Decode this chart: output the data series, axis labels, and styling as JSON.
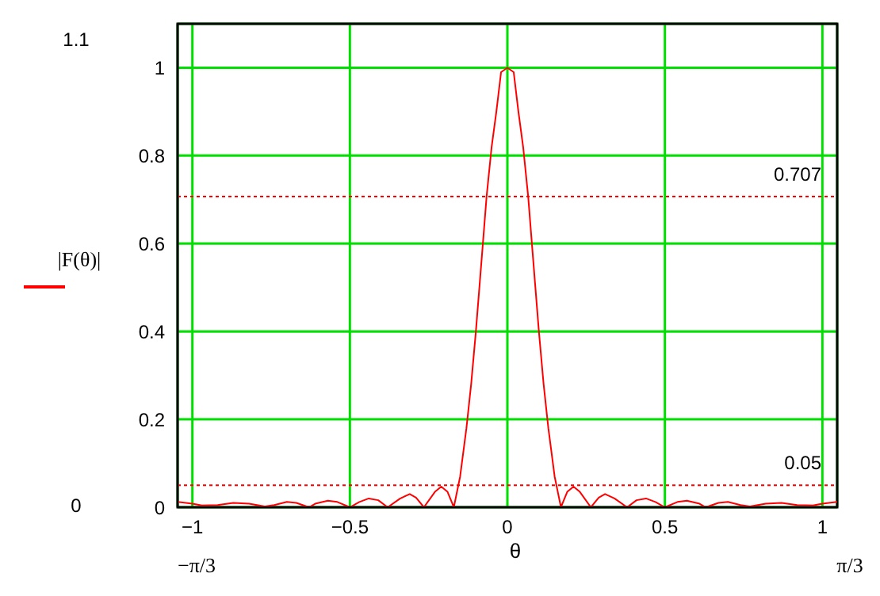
{
  "chart_data": {
    "type": "line",
    "xlabel": "θ",
    "ylabel": "|F(θ)|",
    "x": [
      -1.047,
      -1.0,
      -0.97,
      -0.92,
      -0.87,
      -0.82,
      -0.77,
      -0.74,
      -0.7,
      -0.67,
      -0.63,
      -0.61,
      -0.57,
      -0.54,
      -0.5,
      -0.47,
      -0.44,
      -0.41,
      -0.38,
      -0.34,
      -0.31,
      -0.29,
      -0.265,
      -0.23,
      -0.21,
      -0.19,
      -0.17,
      -0.15,
      -0.13,
      -0.115,
      -0.1,
      -0.08,
      -0.066,
      -0.05,
      -0.035,
      -0.02,
      0,
      0.02,
      0.035,
      0.05,
      0.066,
      0.08,
      0.1,
      0.115,
      0.13,
      0.15,
      0.17,
      0.19,
      0.21,
      0.23,
      0.265,
      0.29,
      0.31,
      0.34,
      0.38,
      0.41,
      0.44,
      0.47,
      0.5,
      0.54,
      0.57,
      0.61,
      0.63,
      0.67,
      0.7,
      0.74,
      0.77,
      0.82,
      0.87,
      0.92,
      0.97,
      1.0,
      1.047
    ],
    "series": [
      {
        "color": "#ff0000",
        "values": [
          0.012,
          0.008,
          0.004,
          0.005,
          0.01,
          0.008,
          0.002,
          0.005,
          0.012,
          0.01,
          0,
          0.008,
          0.015,
          0.012,
          0,
          0.012,
          0.02,
          0.016,
          0,
          0.02,
          0.03,
          0.022,
          0,
          0.035,
          0.047,
          0.035,
          0,
          0.07,
          0.18,
          0.28,
          0.4,
          0.58,
          0.707,
          0.82,
          0.9,
          0.99,
          1,
          0.99,
          0.9,
          0.82,
          0.707,
          0.58,
          0.4,
          0.28,
          0.18,
          0.07,
          0,
          0.035,
          0.047,
          0.035,
          0,
          0.022,
          0.03,
          0.02,
          0,
          0.016,
          0.02,
          0.012,
          0,
          0.012,
          0.015,
          0.008,
          0,
          0.01,
          0.012,
          0.005,
          0.002,
          0.008,
          0.01,
          0.005,
          0.004,
          0.008,
          0.012
        ]
      }
    ],
    "xlim": [
      -1.047,
      1.047
    ],
    "xticks": [
      -1,
      -0.5,
      0,
      0.5,
      1
    ],
    "ylim": [
      0,
      1.1
    ],
    "yticks": [
      0,
      0.2,
      0.4,
      0.6,
      0.8,
      1
    ],
    "grid": true,
    "marker": "none",
    "line_style": "solid",
    "ref_lines": [
      {
        "axis": "y",
        "value": 0.707,
        "label": "0.707",
        "color": "#ff0000",
        "line_style": "dotted"
      },
      {
        "axis": "y",
        "value": 0.05,
        "label": "0.05",
        "color": "#ff0000",
        "line_style": "dotted"
      }
    ],
    "annotations": [
      "1.1",
      "0",
      "−π/3",
      "π/3"
    ]
  }
}
